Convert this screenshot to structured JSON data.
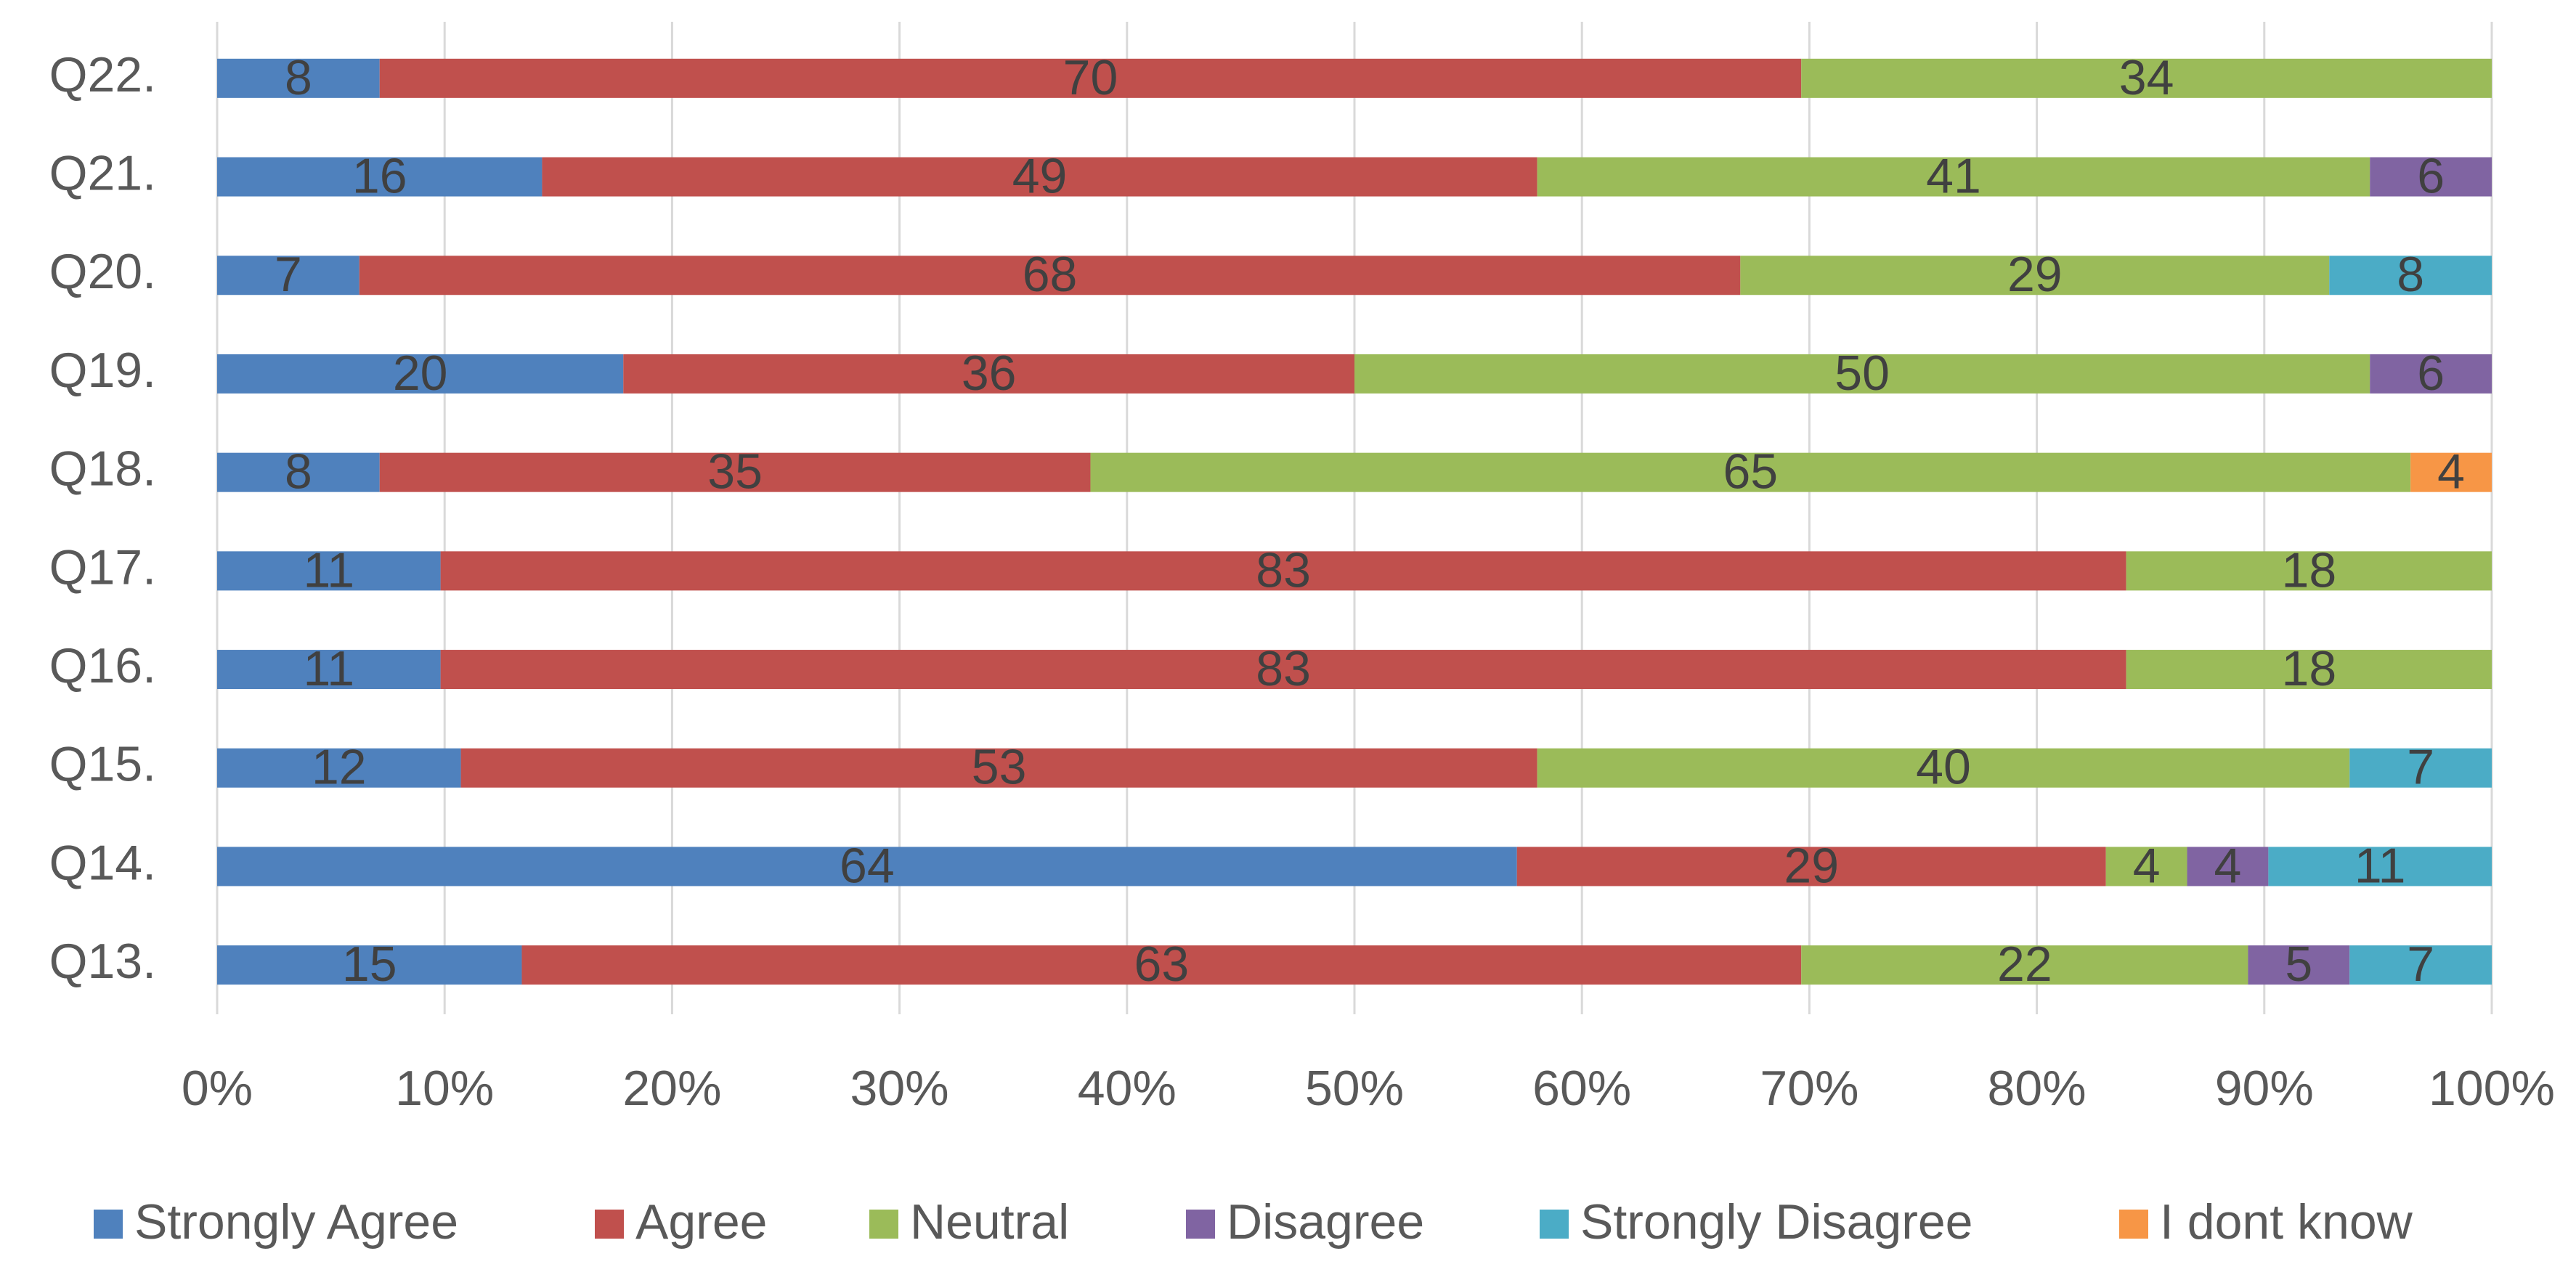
{
  "chart_data": {
    "type": "bar",
    "orientation": "horizontal",
    "stacked": "percent",
    "categories": [
      "Q22.",
      "Q21.",
      "Q20.",
      "Q19.",
      "Q18.",
      "Q17.",
      "Q16.",
      "Q15.",
      "Q14.",
      "Q13."
    ],
    "series": [
      {
        "name": "Strongly Agree",
        "color": "#4f81bd",
        "values": [
          8,
          16,
          7,
          20,
          8,
          11,
          11,
          12,
          64,
          15
        ]
      },
      {
        "name": "Agree",
        "color": "#c0504d",
        "values": [
          70,
          49,
          68,
          36,
          35,
          83,
          83,
          53,
          29,
          63
        ]
      },
      {
        "name": "Neutral",
        "color": "#9bbb59",
        "values": [
          34,
          41,
          29,
          50,
          65,
          18,
          18,
          40,
          4,
          22
        ]
      },
      {
        "name": "Disagree",
        "color": "#8064a2",
        "values": [
          null,
          6,
          null,
          6,
          null,
          null,
          null,
          null,
          4,
          5
        ]
      },
      {
        "name": "Strongly Disagree",
        "color": "#4bacc6",
        "values": [
          null,
          null,
          8,
          null,
          null,
          null,
          null,
          7,
          11,
          7
        ]
      },
      {
        "name": "I dont know",
        "color": "#f79646",
        "values": [
          null,
          null,
          null,
          null,
          4,
          null,
          null,
          null,
          null,
          null
        ]
      }
    ],
    "xlim": [
      0,
      100
    ],
    "xticks": [
      {
        "value": 0,
        "label": "0%"
      },
      {
        "value": 10,
        "label": "10%"
      },
      {
        "value": 20,
        "label": "20%"
      },
      {
        "value": 30,
        "label": "30%"
      },
      {
        "value": 40,
        "label": "40%"
      },
      {
        "value": 50,
        "label": "50%"
      },
      {
        "value": 60,
        "label": "60%"
      },
      {
        "value": 70,
        "label": "70%"
      },
      {
        "value": 80,
        "label": "80%"
      },
      {
        "value": 90,
        "label": "90%"
      },
      {
        "value": 100,
        "label": "100%"
      }
    ],
    "grid": true,
    "legend": "bottom"
  }
}
